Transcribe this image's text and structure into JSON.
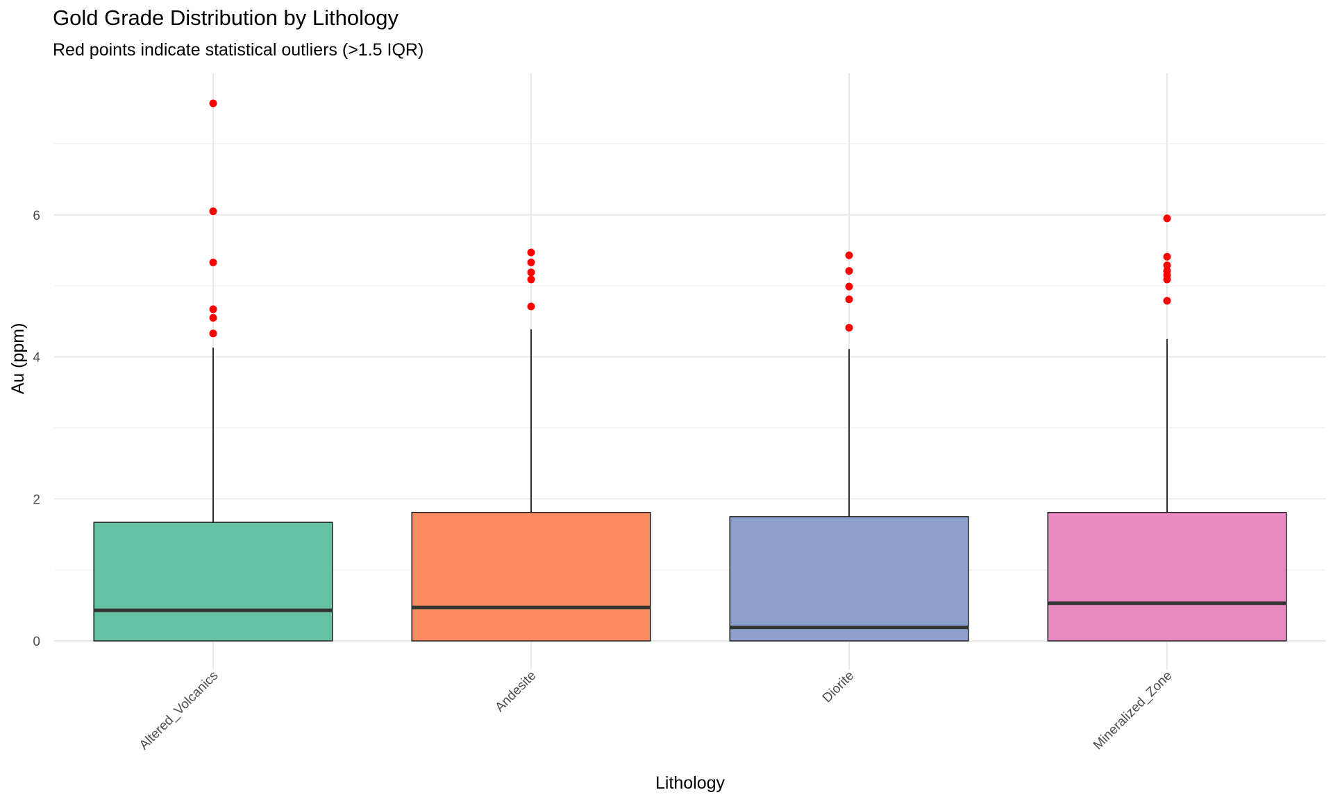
{
  "chart_data": {
    "type": "boxplot",
    "title": "Gold Grade Distribution by Lithology",
    "subtitle": "Red points indicate statistical outliers (>1.5 IQR)",
    "xlabel": "Lithology",
    "ylabel": "Au (ppm)",
    "ylim": [
      -0.4,
      8.0
    ],
    "yticks": [
      0,
      2,
      4,
      6
    ],
    "ytick_labels": [
      "0",
      "2",
      "4",
      "6"
    ],
    "grid": true,
    "legend": "none",
    "outlier_color": "#ff0000",
    "categories": [
      "Altered_Volcanics",
      "Andesite",
      "Diorite",
      "Mineralized_Zone"
    ],
    "boxes": [
      {
        "category": "Altered_Volcanics",
        "color": "#66c2a5",
        "min": 0.0,
        "q1": 0.0,
        "median": 0.43,
        "q3": 1.67,
        "whisker_high": 4.13,
        "outliers": [
          4.33,
          4.55,
          4.67,
          5.33,
          6.05,
          7.57
        ]
      },
      {
        "category": "Andesite",
        "color": "#fc8d62",
        "min": 0.0,
        "q1": 0.0,
        "median": 0.47,
        "q3": 1.81,
        "whisker_high": 4.39,
        "outliers": [
          4.71,
          5.09,
          5.19,
          5.33,
          5.47
        ]
      },
      {
        "category": "Diorite",
        "color": "#8da0cb",
        "min": 0.0,
        "q1": 0.0,
        "median": 0.19,
        "q3": 1.75,
        "whisker_high": 4.11,
        "outliers": [
          4.41,
          4.81,
          4.99,
          5.21,
          5.43
        ]
      },
      {
        "category": "Mineralized_Zone",
        "color": "#e78ac3",
        "min": 0.0,
        "q1": 0.0,
        "median": 0.53,
        "q3": 1.81,
        "whisker_high": 4.25,
        "outliers": [
          4.79,
          5.09,
          5.15,
          5.21,
          5.29,
          5.41,
          5.95
        ]
      }
    ]
  }
}
